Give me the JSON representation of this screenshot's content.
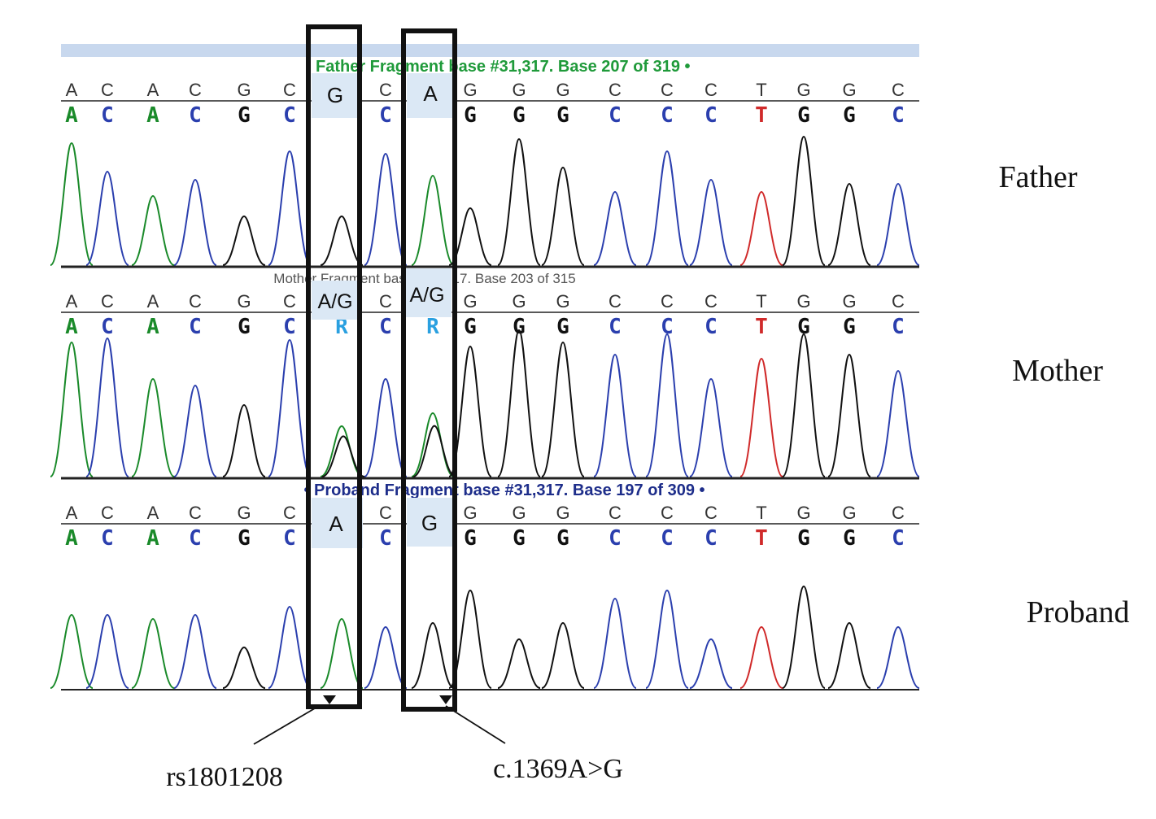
{
  "panels": [
    {
      "label": "Father",
      "header": "• Father Fragment base #31,317. Base 207 of 319 •",
      "call_top": "G",
      "call_bottom": "A"
    },
    {
      "label": "Mother",
      "header": "Mother Fragment base #31,317. Base 203 of 315",
      "call_top": "A/G",
      "call_bottom": "A/G"
    },
    {
      "label": "Proband",
      "header": "• Proband Fragment base #31,317. Base 197 of 309 •",
      "call_top": "A",
      "call_bottom": "G"
    }
  ],
  "sequence": [
    "A",
    "C",
    "A",
    "C",
    "G",
    "C",
    "R",
    "C",
    "R",
    "G",
    "G",
    "G",
    "C",
    "C",
    "C",
    "T",
    "G",
    "G",
    "C"
  ],
  "annotations": {
    "left": "rs1801208",
    "right": "c.1369A>G"
  },
  "colors": {
    "A": "#1a8a2a",
    "C": "#2b3fae",
    "G": "#111111",
    "T": "#d02a2a",
    "R": "#2aa0e0",
    "header_green": "#1f9a3a",
    "header_gray": "#555555",
    "header_blue": "#1d2d8a",
    "callout_bg": "#dbe8f5",
    "top_band": "#c8d8ee"
  }
}
